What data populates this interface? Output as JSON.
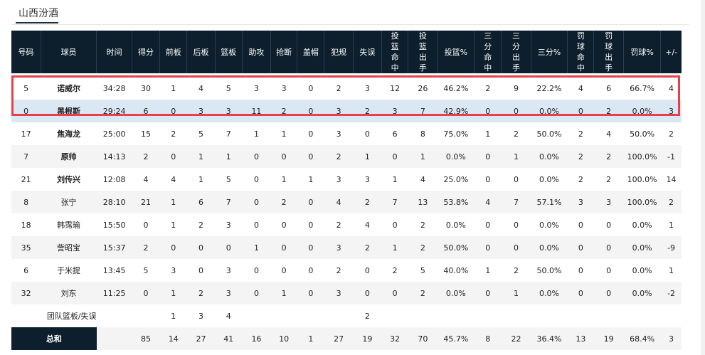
{
  "tab": {
    "label": "山西汾酒"
  },
  "headers": [
    "号码",
    "球员",
    "时间",
    "得分",
    "前板",
    "后板",
    "篮板",
    "助攻",
    "抢断",
    "盖帽",
    "犯规",
    "失误",
    "投篮命中",
    "投篮出手",
    "投篮%",
    "三分命中",
    "三分出手",
    "三分%",
    "罚球命中",
    "罚球出手",
    "罚球%",
    "+/-"
  ],
  "players": [
    [
      "5",
      "诺威尔",
      "34:28",
      "30",
      "1",
      "4",
      "5",
      "3",
      "3",
      "0",
      "2",
      "3",
      "12",
      "26",
      "46.2%",
      "2",
      "9",
      "22.2%",
      "4",
      "6",
      "66.7%",
      "4"
    ],
    [
      "0",
      "黑根斯",
      "29:24",
      "6",
      "0",
      "3",
      "3",
      "11",
      "2",
      "0",
      "3",
      "2",
      "3",
      "7",
      "42.9%",
      "0",
      "0",
      "0.0%",
      "0",
      "2",
      "0.0%",
      "3"
    ],
    [
      "17",
      "焦海龙",
      "25:00",
      "15",
      "2",
      "5",
      "7",
      "1",
      "1",
      "0",
      "3",
      "0",
      "6",
      "8",
      "75.0%",
      "1",
      "2",
      "50.0%",
      "2",
      "4",
      "50.0%",
      "2"
    ],
    [
      "7",
      "原帅",
      "14:13",
      "2",
      "0",
      "1",
      "1",
      "0",
      "0",
      "0",
      "2",
      "1",
      "0",
      "1",
      "0.0%",
      "0",
      "1",
      "0.0%",
      "2",
      "2",
      "100.0%",
      "-1"
    ],
    [
      "21",
      "刘传兴",
      "12:08",
      "4",
      "4",
      "1",
      "5",
      "0",
      "1",
      "1",
      "3",
      "3",
      "1",
      "4",
      "25.0%",
      "0",
      "0",
      "0.0%",
      "2",
      "2",
      "100.0%",
      "14"
    ],
    [
      "8",
      "张宁",
      "28:10",
      "21",
      "1",
      "6",
      "7",
      "0",
      "2",
      "0",
      "4",
      "2",
      "7",
      "13",
      "53.8%",
      "4",
      "7",
      "57.1%",
      "3",
      "3",
      "100.0%",
      "2"
    ],
    [
      "18",
      "韩霈瑜",
      "15:50",
      "0",
      "1",
      "2",
      "3",
      "0",
      "0",
      "0",
      "2",
      "4",
      "0",
      "2",
      "0.0%",
      "0",
      "0",
      "0.0%",
      "0",
      "0",
      "0.0%",
      "1"
    ],
    [
      "35",
      "訾昭宝",
      "15:37",
      "2",
      "0",
      "0",
      "0",
      "1",
      "0",
      "0",
      "3",
      "2",
      "1",
      "2",
      "50.0%",
      "0",
      "0",
      "0.0%",
      "0",
      "0",
      "0.0%",
      "-9"
    ],
    [
      "6",
      "于米提",
      "13:45",
      "5",
      "3",
      "0",
      "3",
      "0",
      "0",
      "0",
      "2",
      "0",
      "2",
      "5",
      "40.0%",
      "1",
      "2",
      "50.0%",
      "0",
      "0",
      "0.0%",
      "1"
    ],
    [
      "32",
      "刘东",
      "11:25",
      "0",
      "1",
      "2",
      "3",
      "0",
      "1",
      "0",
      "3",
      "0",
      "0",
      "2",
      "0.0%",
      "0",
      "1",
      "0.0%",
      "0",
      "0",
      "0.0%",
      "-2"
    ]
  ],
  "bold_names": [
    "诺威尔",
    "黑根斯",
    "焦海龙",
    "原帅",
    "刘传兴"
  ],
  "team_row": {
    "label": "团队篮板/失误",
    "off_reb": "1",
    "def_reb": "3",
    "reb": "4",
    "turnovers": "2"
  },
  "totals": {
    "label": "总和",
    "values": [
      "85",
      "14",
      "27",
      "41",
      "16",
      "10",
      "1",
      "27",
      "19",
      "32",
      "70",
      "45.7%",
      "8",
      "22",
      "36.4%",
      "13",
      "19",
      "68.4%",
      "3"
    ]
  },
  "colors": {
    "header_bg": "#0d1f2d",
    "highlight": "#e8404a",
    "selected_row": "#dbe8f4",
    "stripe": "#f4f4f4"
  }
}
